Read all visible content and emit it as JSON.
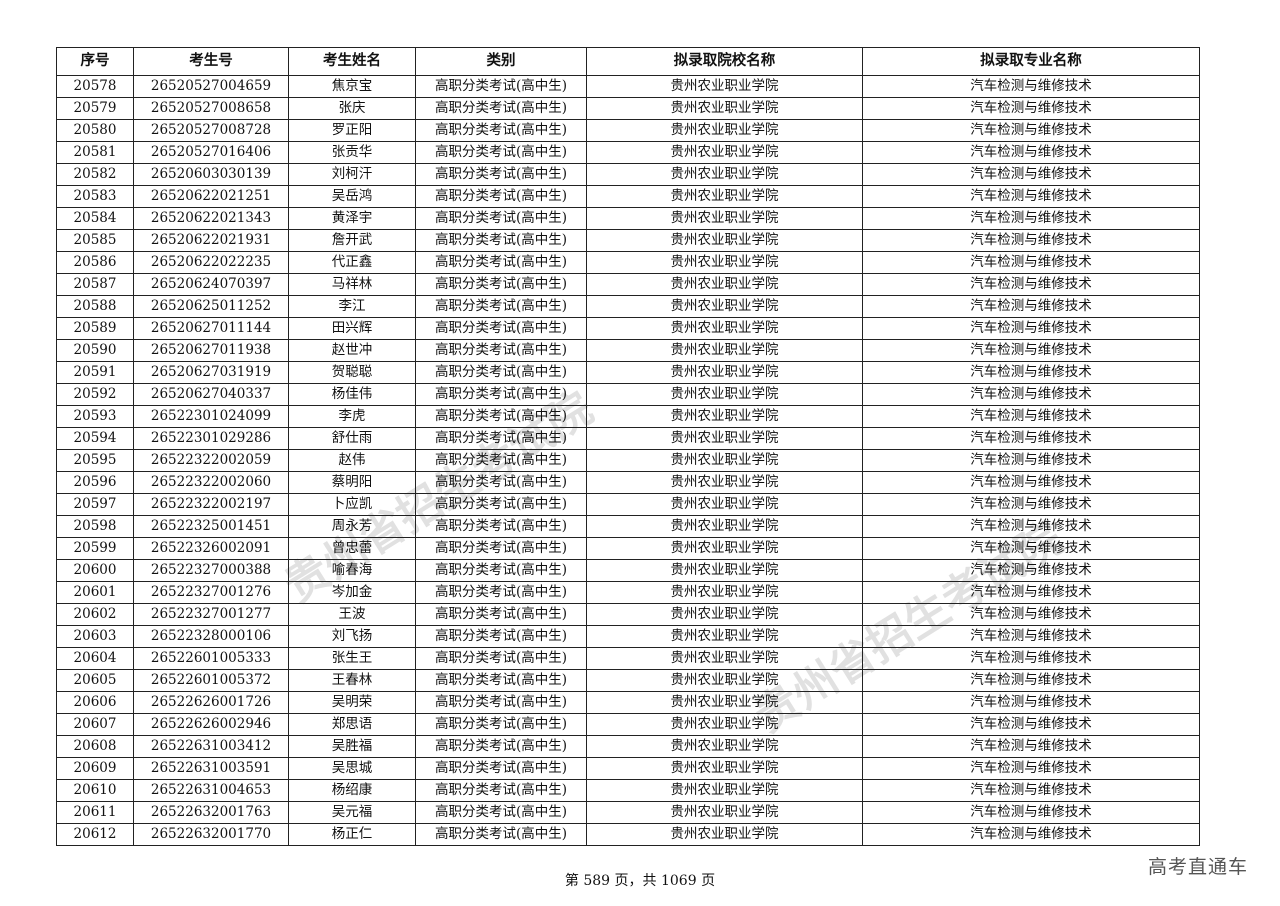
{
  "table": {
    "headers": [
      "序号",
      "考生号",
      "考生姓名",
      "类别",
      "拟录取院校名称",
      "拟录取专业名称"
    ],
    "category": "高职分类考试(高中生)",
    "school": "贵州农业职业学院",
    "major": "汽车检测与维修技术",
    "rows": [
      [
        "20578",
        "26520527004659",
        "焦京宝"
      ],
      [
        "20579",
        "26520527008658",
        "张庆"
      ],
      [
        "20580",
        "26520527008728",
        "罗正阳"
      ],
      [
        "20581",
        "26520527016406",
        "张贡华"
      ],
      [
        "20582",
        "26520603030139",
        "刘柯汗"
      ],
      [
        "20583",
        "26520622021251",
        "吴岳鸿"
      ],
      [
        "20584",
        "26520622021343",
        "黄泽宇"
      ],
      [
        "20585",
        "26520622021931",
        "詹开武"
      ],
      [
        "20586",
        "26520622022235",
        "代正鑫"
      ],
      [
        "20587",
        "26520624070397",
        "马祥林"
      ],
      [
        "20588",
        "26520625011252",
        "李江"
      ],
      [
        "20589",
        "26520627011144",
        "田兴辉"
      ],
      [
        "20590",
        "26520627011938",
        "赵世冲"
      ],
      [
        "20591",
        "26520627031919",
        "贺聪聪"
      ],
      [
        "20592",
        "26520627040337",
        "杨佳伟"
      ],
      [
        "20593",
        "26522301024099",
        "李虎"
      ],
      [
        "20594",
        "26522301029286",
        "舒仕雨"
      ],
      [
        "20595",
        "26522322002059",
        "赵伟"
      ],
      [
        "20596",
        "26522322002060",
        "蔡明阳"
      ],
      [
        "20597",
        "26522322002197",
        "卜应凯"
      ],
      [
        "20598",
        "26522325001451",
        "周永芳"
      ],
      [
        "20599",
        "26522326002091",
        "曾忠蕾"
      ],
      [
        "20600",
        "26522327000388",
        "喻春海"
      ],
      [
        "20601",
        "26522327001276",
        "岑加金"
      ],
      [
        "20602",
        "26522327001277",
        "王波"
      ],
      [
        "20603",
        "26522328000106",
        "刘飞扬"
      ],
      [
        "20604",
        "26522601005333",
        "张生王"
      ],
      [
        "20605",
        "26522601005372",
        "王春林"
      ],
      [
        "20606",
        "26522626001726",
        "吴明荣"
      ],
      [
        "20607",
        "26522626002946",
        "郑思语"
      ],
      [
        "20608",
        "26522631003412",
        "吴胜福"
      ],
      [
        "20609",
        "26522631003591",
        "吴思城"
      ],
      [
        "20610",
        "26522631004653",
        "杨绍康"
      ],
      [
        "20611",
        "26522632001763",
        "吴元福"
      ],
      [
        "20612",
        "26522632001770",
        "杨正仁"
      ]
    ]
  },
  "footer": "第 589 页，共 1069 页",
  "corner_watermark": "高考直通车",
  "stamp_watermark": "贵州省招生考试院"
}
